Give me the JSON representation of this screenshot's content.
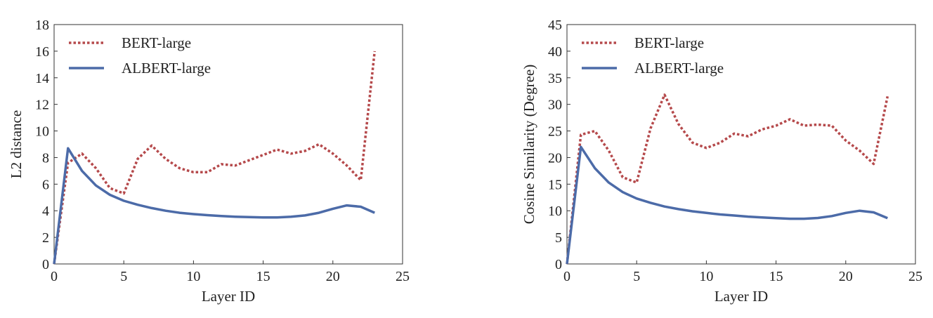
{
  "chart_data": [
    {
      "type": "line",
      "xlabel": "Layer ID",
      "ylabel": "L2 distance",
      "xlim": [
        0,
        25
      ],
      "ylim": [
        0,
        18
      ],
      "xticks": [
        0,
        5,
        10,
        15,
        20,
        25
      ],
      "yticks": [
        0,
        2,
        4,
        6,
        8,
        10,
        12,
        14,
        16,
        18
      ],
      "grid": false,
      "legend_position": "top-left",
      "x": [
        0,
        1,
        2,
        3,
        4,
        5,
        6,
        7,
        8,
        9,
        10,
        11,
        12,
        13,
        14,
        15,
        16,
        17,
        18,
        19,
        20,
        21,
        22,
        23
      ],
      "series": [
        {
          "name": "BERT-large",
          "style": "dotted",
          "color": "#b5494b",
          "values": [
            0,
            7.6,
            8.3,
            7.2,
            5.7,
            5.3,
            7.9,
            8.9,
            7.9,
            7.2,
            6.9,
            6.9,
            7.5,
            7.4,
            7.8,
            8.2,
            8.6,
            8.3,
            8.5,
            9.0,
            8.3,
            7.4,
            6.3,
            16.0
          ]
        },
        {
          "name": "ALBERT-large",
          "style": "solid",
          "color": "#4c6ba8",
          "values": [
            0,
            8.7,
            7.0,
            5.9,
            5.2,
            4.75,
            4.45,
            4.2,
            4.0,
            3.85,
            3.75,
            3.67,
            3.6,
            3.55,
            3.52,
            3.5,
            3.5,
            3.55,
            3.65,
            3.85,
            4.15,
            4.4,
            4.3,
            3.85
          ]
        }
      ]
    },
    {
      "type": "line",
      "xlabel": "Layer ID",
      "ylabel": "Cosine Similarity (Degree)",
      "xlim": [
        0,
        25
      ],
      "ylim": [
        0,
        45
      ],
      "xticks": [
        0,
        5,
        10,
        15,
        20,
        25
      ],
      "yticks": [
        0,
        5,
        10,
        15,
        20,
        25,
        30,
        35,
        40,
        45
      ],
      "grid": false,
      "legend_position": "top-left",
      "x": [
        0,
        1,
        2,
        3,
        4,
        5,
        6,
        7,
        8,
        9,
        10,
        11,
        12,
        13,
        14,
        15,
        16,
        17,
        18,
        19,
        20,
        21,
        22,
        23
      ],
      "series": [
        {
          "name": "BERT-large",
          "style": "dotted",
          "color": "#b5494b",
          "values": [
            0,
            24.3,
            25.0,
            21.3,
            16.3,
            15.3,
            25.5,
            31.8,
            26.3,
            22.8,
            21.8,
            22.8,
            24.5,
            24.0,
            25.3,
            26.0,
            27.2,
            26.0,
            26.2,
            26.0,
            23.2,
            21.3,
            18.8,
            31.5
          ]
        },
        {
          "name": "ALBERT-large",
          "style": "solid",
          "color": "#4c6ba8",
          "values": [
            0,
            22.0,
            18.0,
            15.3,
            13.5,
            12.3,
            11.5,
            10.8,
            10.3,
            9.9,
            9.6,
            9.3,
            9.1,
            8.9,
            8.75,
            8.6,
            8.5,
            8.5,
            8.65,
            9.0,
            9.6,
            10.0,
            9.7,
            8.6
          ]
        }
      ]
    }
  ]
}
